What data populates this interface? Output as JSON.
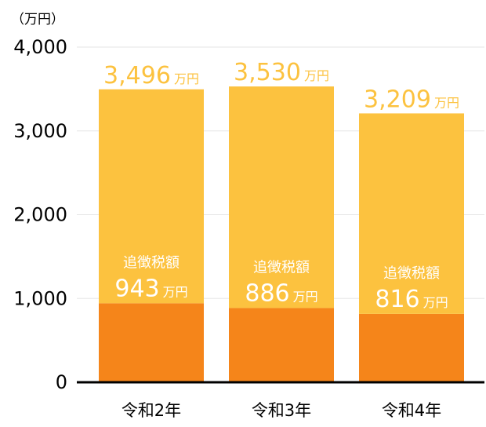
{
  "chart_data": {
    "type": "bar",
    "stacked": true,
    "unit_label": "（万円）",
    "ylim": [
      0,
      4000
    ],
    "yticks": [
      "0",
      "1,000",
      "2,000",
      "3,000",
      "4,000"
    ],
    "ytick_values": [
      0,
      1000,
      2000,
      3000,
      4000
    ],
    "grid": true,
    "categories": [
      "令和2年",
      "令和3年",
      "令和4年"
    ],
    "totals": [
      3496,
      3530,
      3209
    ],
    "total_labels": [
      "3,496",
      "3,530",
      "3,209"
    ],
    "series": [
      {
        "label": "追徴税額",
        "values": [
          943,
          886,
          816
        ],
        "value_labels": [
          "943",
          "886",
          "816"
        ],
        "color": "#f5851a"
      },
      {
        "values": [
          2553,
          2644,
          2393
        ],
        "color": "#fcc23f"
      }
    ],
    "value_unit": "万円",
    "total_label_color": "#fcc23f",
    "inner_label_color": "#ffffff",
    "axis_color": "#000000",
    "grid_color": "#e6e6e6"
  }
}
